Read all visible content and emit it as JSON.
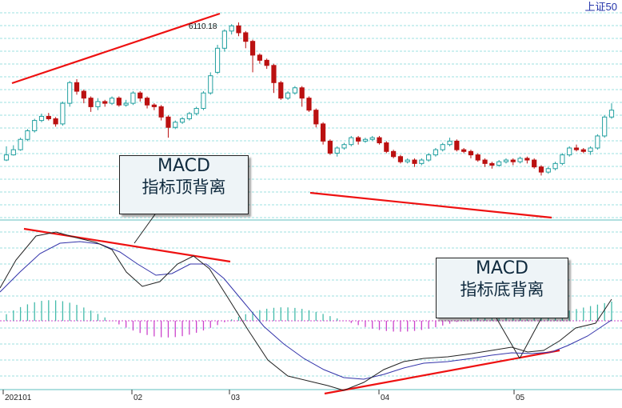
{
  "header": {
    "index_label": "上证50"
  },
  "chart_data": [
    {
      "type": "candlestick",
      "title": "上证50",
      "x_ticks": [
        "202101",
        "02",
        "03",
        "04",
        "05"
      ],
      "peak_label": "6110.18",
      "trend": "rally from January to a February peak, then a decline through March–May and a rebound at the end",
      "candles": [
        [
          -0.35,
          -0.2,
          0.05,
          -0.38
        ],
        [
          -0.2,
          -0.05,
          0.08,
          -0.22
        ],
        [
          -0.05,
          0.25,
          0.3,
          -0.08
        ],
        [
          0.25,
          0.5,
          0.55,
          0.2
        ],
        [
          0.5,
          0.8,
          0.85,
          0.45
        ],
        [
          0.8,
          0.92,
          1.0,
          0.75
        ],
        [
          0.92,
          0.85,
          1.02,
          0.8
        ],
        [
          0.85,
          0.7,
          0.9,
          0.62
        ],
        [
          0.7,
          1.3,
          1.35,
          0.65
        ],
        [
          1.3,
          1.9,
          1.95,
          1.2
        ],
        [
          1.9,
          1.65,
          2.0,
          1.55
        ],
        [
          1.65,
          1.45,
          1.7,
          1.3
        ],
        [
          1.45,
          1.2,
          1.5,
          1.05
        ],
        [
          1.2,
          1.35,
          1.45,
          1.1
        ],
        [
          1.35,
          1.3,
          1.4,
          1.2
        ],
        [
          1.3,
          1.45,
          1.5,
          1.25
        ],
        [
          1.45,
          1.25,
          1.5,
          1.2
        ],
        [
          1.25,
          1.3,
          1.4,
          1.2
        ],
        [
          1.3,
          1.6,
          1.65,
          1.25
        ],
        [
          1.6,
          1.45,
          1.65,
          1.35
        ],
        [
          1.45,
          1.25,
          1.5,
          1.15
        ],
        [
          1.25,
          1.2,
          1.3,
          1.1
        ],
        [
          1.2,
          0.9,
          1.25,
          0.8
        ],
        [
          0.9,
          0.6,
          0.95,
          0.3
        ],
        [
          0.6,
          0.75,
          0.8,
          0.55
        ],
        [
          0.75,
          0.85,
          0.9,
          0.7
        ],
        [
          0.85,
          1.0,
          1.05,
          0.8
        ],
        [
          1.0,
          1.15,
          1.2,
          0.95
        ],
        [
          1.15,
          1.6,
          1.65,
          1.1
        ],
        [
          1.6,
          2.1,
          2.2,
          1.55
        ],
        [
          2.2,
          2.9,
          3.0,
          2.15
        ],
        [
          2.9,
          3.4,
          3.45,
          2.8
        ],
        [
          3.4,
          3.55,
          3.6,
          3.3
        ],
        [
          3.55,
          3.35,
          3.65,
          3.25
        ],
        [
          3.35,
          3.1,
          3.4,
          2.9
        ],
        [
          3.1,
          2.7,
          3.15,
          2.2
        ],
        [
          2.7,
          2.55,
          2.75,
          2.45
        ],
        [
          2.55,
          2.4,
          2.6,
          2.3
        ],
        [
          2.4,
          1.9,
          2.45,
          1.6
        ],
        [
          1.9,
          1.45,
          1.95,
          1.4
        ],
        [
          1.45,
          1.6,
          1.65,
          1.4
        ],
        [
          1.6,
          1.75,
          1.8,
          1.55
        ],
        [
          1.75,
          1.45,
          1.8,
          1.2
        ],
        [
          1.45,
          1.1,
          1.5,
          1.05
        ],
        [
          1.1,
          0.7,
          1.15,
          0.6
        ],
        [
          0.7,
          0.2,
          0.75,
          0.1
        ],
        [
          0.2,
          -0.15,
          0.25,
          -0.2
        ],
        [
          -0.15,
          0.0,
          0.05,
          -0.25
        ],
        [
          0.0,
          0.1,
          0.15,
          -0.05
        ],
        [
          0.1,
          0.3,
          0.35,
          0.05
        ],
        [
          0.3,
          0.2,
          0.35,
          0.1
        ],
        [
          0.2,
          0.25,
          0.3,
          0.15
        ],
        [
          0.25,
          0.3,
          0.35,
          0.2
        ],
        [
          0.3,
          0.15,
          0.35,
          0.1
        ],
        [
          0.15,
          -0.1,
          0.2,
          -0.15
        ],
        [
          -0.1,
          -0.25,
          -0.05,
          -0.3
        ],
        [
          -0.25,
          -0.4,
          -0.2,
          -0.45
        ],
        [
          -0.4,
          -0.35,
          -0.3,
          -0.45
        ],
        [
          -0.35,
          -0.45,
          -0.3,
          -0.55
        ],
        [
          -0.45,
          -0.35,
          -0.3,
          -0.5
        ],
        [
          -0.35,
          -0.2,
          -0.15,
          -0.4
        ],
        [
          -0.2,
          -0.05,
          0.0,
          -0.25
        ],
        [
          -0.05,
          0.1,
          0.15,
          -0.1
        ],
        [
          0.1,
          0.2,
          0.3,
          0.05
        ],
        [
          0.2,
          -0.05,
          0.25,
          -0.1
        ],
        [
          -0.05,
          -0.1,
          0.0,
          -0.15
        ],
        [
          -0.1,
          -0.2,
          -0.05,
          -0.3
        ],
        [
          -0.2,
          -0.35,
          -0.15,
          -0.4
        ],
        [
          -0.35,
          -0.45,
          -0.3,
          -0.55
        ],
        [
          -0.45,
          -0.5,
          -0.4,
          -0.6
        ],
        [
          -0.5,
          -0.4,
          -0.35,
          -0.55
        ],
        [
          -0.4,
          -0.35,
          -0.3,
          -0.45
        ],
        [
          -0.35,
          -0.4,
          -0.3,
          -0.5
        ],
        [
          -0.4,
          -0.3,
          -0.25,
          -0.45
        ],
        [
          -0.3,
          -0.35,
          -0.25,
          -0.45
        ],
        [
          -0.35,
          -0.55,
          -0.3,
          -0.6
        ],
        [
          -0.55,
          -0.7,
          -0.5,
          -0.8
        ],
        [
          -0.7,
          -0.6,
          -0.55,
          -0.75
        ],
        [
          -0.6,
          -0.45,
          -0.4,
          -0.65
        ],
        [
          -0.45,
          -0.2,
          -0.15,
          -0.5
        ],
        [
          -0.2,
          0.0,
          0.05,
          -0.25
        ],
        [
          0.0,
          -0.05,
          0.1,
          -0.1
        ],
        [
          -0.05,
          -0.1,
          0.0,
          -0.15
        ],
        [
          -0.1,
          0.0,
          0.05,
          -0.2
        ],
        [
          0.0,
          0.35,
          0.4,
          -0.05
        ],
        [
          0.35,
          0.9,
          0.95,
          0.3
        ],
        [
          0.9,
          1.1,
          1.3,
          0.85
        ]
      ],
      "trend_lines": [
        {
          "color": "#ee1111",
          "label": "top",
          "note": "rising line across price highs"
        },
        {
          "color": "#ee1111",
          "label": "bottom",
          "note": "falling line across price lows"
        }
      ]
    },
    {
      "type": "line",
      "title": "MACD",
      "series": [
        {
          "color": "#222222",
          "style": "DIF"
        },
        {
          "color": "#3333aa",
          "style": "DEA"
        }
      ],
      "histogram_colors": {
        "positive": "#44bbaa",
        "negative": "#cc44cc"
      },
      "zero_line_color": "#cc44cc"
    }
  ],
  "callouts": [
    {
      "line1": "MACD",
      "line2": "指标顶背离"
    },
    {
      "line1": "MACD",
      "line2": "指标底背离"
    }
  ],
  "colors": {
    "grid": "#7fd7d7",
    "up_candle_border": "#22a0a0",
    "down_candle_fill": "#bb1111",
    "divergence_line": "#ee1111",
    "index_label": "#2233aa"
  }
}
